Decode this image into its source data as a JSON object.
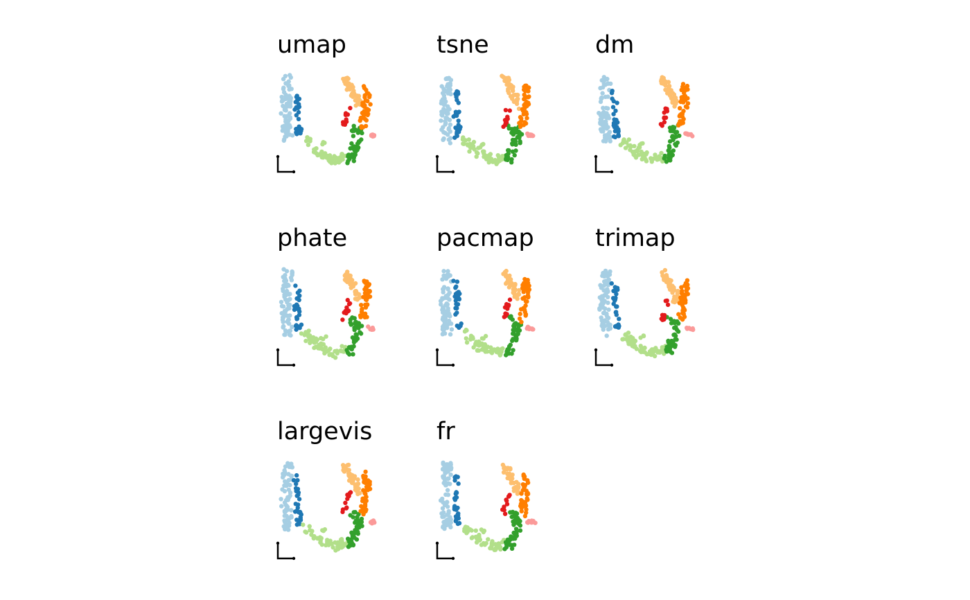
{
  "figure": {
    "layout": "grid 3 columns x 3 rows",
    "marker": "filled dots",
    "axes": "minimal L-shaped axis indicator at bottom-left, no ticks or labels"
  },
  "clusters": [
    {
      "id": "c1",
      "color": "#a6cee3"
    },
    {
      "id": "c2",
      "color": "#1f78b4"
    },
    {
      "id": "c3",
      "color": "#b2df8a"
    },
    {
      "id": "c4",
      "color": "#33a02c"
    },
    {
      "id": "c5",
      "color": "#fb9a99"
    },
    {
      "id": "c6",
      "color": "#e31a1c"
    },
    {
      "id": "c7",
      "color": "#fdbf6f"
    },
    {
      "id": "c8",
      "color": "#ff7f00"
    }
  ],
  "chart_data": [
    {
      "type": "scatter",
      "title": "umap",
      "xlabel": "",
      "ylabel": "",
      "xlim": [
        0,
        1
      ],
      "ylim": [
        0,
        1
      ],
      "grid": false,
      "legend": "none"
    },
    {
      "type": "scatter",
      "title": "tsne",
      "xlabel": "",
      "ylabel": "",
      "xlim": [
        0,
        1
      ],
      "ylim": [
        0,
        1
      ],
      "grid": false,
      "legend": "none"
    },
    {
      "type": "scatter",
      "title": "dm",
      "xlabel": "",
      "ylabel": "",
      "xlim": [
        0,
        1
      ],
      "ylim": [
        0,
        1
      ],
      "grid": false,
      "legend": "none"
    },
    {
      "type": "scatter",
      "title": "phate",
      "xlabel": "",
      "ylabel": "",
      "xlim": [
        0,
        1
      ],
      "ylim": [
        0,
        1
      ],
      "grid": false,
      "legend": "none"
    },
    {
      "type": "scatter",
      "title": "pacmap",
      "xlabel": "",
      "ylabel": "",
      "xlim": [
        0,
        1
      ],
      "ylim": [
        0,
        1
      ],
      "grid": false,
      "legend": "none"
    },
    {
      "type": "scatter",
      "title": "trimap",
      "xlabel": "",
      "ylabel": "",
      "xlim": [
        0,
        1
      ],
      "ylim": [
        0,
        1
      ],
      "grid": false,
      "legend": "none"
    },
    {
      "type": "scatter",
      "title": "largevis",
      "xlabel": "",
      "ylabel": "",
      "xlim": [
        0,
        1
      ],
      "ylim": [
        0,
        1
      ],
      "grid": false,
      "legend": "none"
    },
    {
      "type": "scatter",
      "title": "fr",
      "xlabel": "",
      "ylabel": "",
      "xlim": [
        0,
        1
      ],
      "ylim": [
        0,
        1
      ],
      "grid": false,
      "legend": "none"
    }
  ]
}
